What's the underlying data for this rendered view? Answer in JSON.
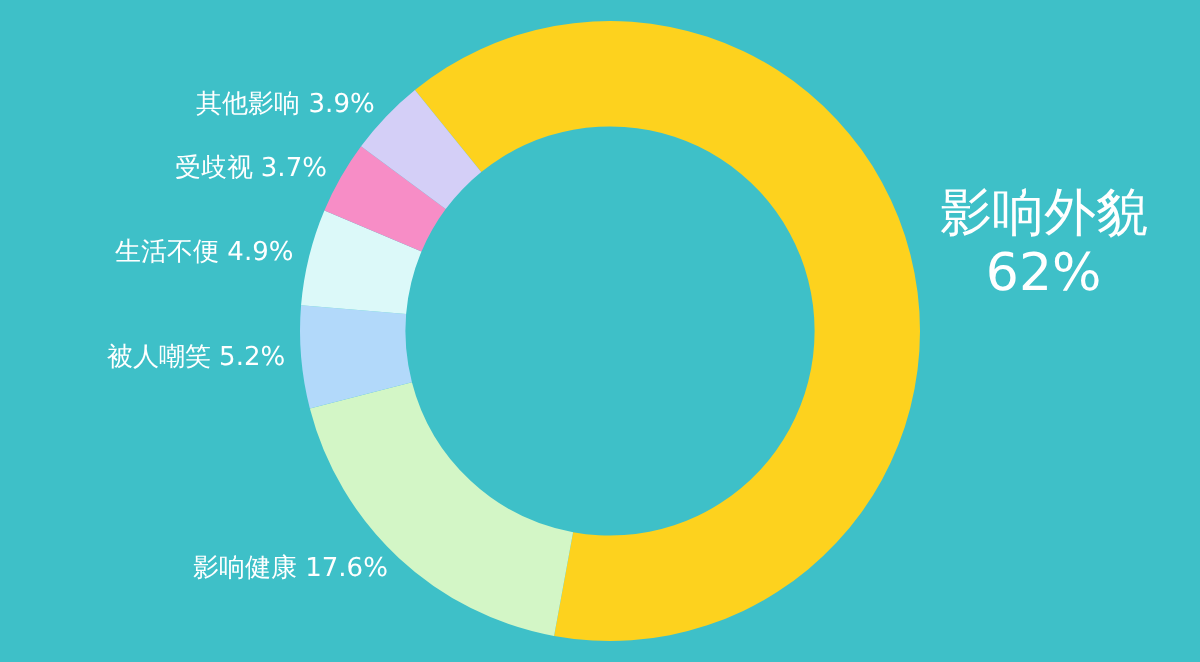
{
  "chart_data": {
    "type": "donut",
    "categories": [
      "影响外貌",
      "影响健康",
      "被人嘲笑",
      "生活不便",
      "受歧视",
      "其他影响"
    ],
    "values": [
      62,
      17.6,
      5.2,
      4.9,
      3.7,
      3.9
    ],
    "value_labels": [
      "62%",
      "17.6%",
      "5.2%",
      "4.9%",
      "3.7%",
      "3.9%"
    ],
    "colors": [
      "#fdd21e",
      "#d3f6c6",
      "#b2d9fa",
      "#dcf9f9",
      "#f78dc6",
      "#d4cff7"
    ],
    "legend": false
  }
}
